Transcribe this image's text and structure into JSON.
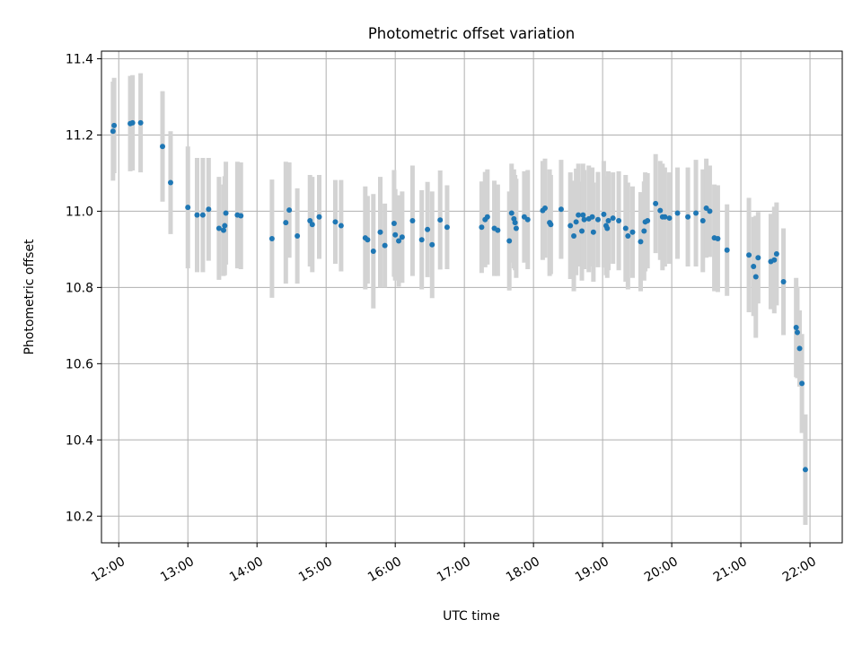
{
  "chart_data": {
    "type": "scatter",
    "title": "Photometric offset variation",
    "xlabel": "UTC time",
    "ylabel": "Photometric offset",
    "x_tick_labels": [
      "12:00",
      "13:00",
      "14:00",
      "15:00",
      "16:00",
      "17:00",
      "18:00",
      "19:00",
      "20:00",
      "21:00",
      "22:00"
    ],
    "y_tick_labels": [
      "10.2",
      "10.4",
      "10.6",
      "10.8",
      "11.0",
      "11.2",
      "11.4"
    ],
    "xlim": [
      "11:45",
      "22:28"
    ],
    "ylim": [
      10.13,
      11.42
    ],
    "grid": true,
    "colors": {
      "marker": "#1f77b4",
      "errorbar": "#d3d3d3"
    },
    "series": [
      {
        "points": [
          [
            "11:55",
            11.21,
            0.13
          ],
          [
            "11:56",
            11.225,
            0.125
          ],
          [
            "12:10",
            11.23,
            0.125
          ],
          [
            "12:12",
            11.232,
            0.125
          ],
          [
            "12:19",
            11.232,
            0.13
          ],
          [
            "12:38",
            11.17,
            0.145
          ],
          [
            "12:45",
            11.075,
            0.135
          ],
          [
            "13:00",
            11.01,
            0.16
          ],
          [
            "13:08",
            10.99,
            0.15
          ],
          [
            "13:13",
            10.99,
            0.15
          ],
          [
            "13:18",
            11.005,
            0.135
          ],
          [
            "13:27",
            10.955,
            0.135
          ],
          [
            "13:31",
            10.95,
            0.12
          ],
          [
            "13:32",
            10.962,
            0.13
          ],
          [
            "13:33",
            10.995,
            0.135
          ],
          [
            "13:43",
            10.99,
            0.14
          ],
          [
            "13:46",
            10.988,
            0.14
          ],
          [
            "14:13",
            10.928,
            0.155
          ],
          [
            "14:25",
            10.97,
            0.16
          ],
          [
            "14:28",
            11.003,
            0.125
          ],
          [
            "14:35",
            10.935,
            0.125
          ],
          [
            "14:46",
            10.975,
            0.12
          ],
          [
            "14:48",
            10.965,
            0.125
          ],
          [
            "14:54",
            10.985,
            0.11
          ],
          [
            "15:08",
            10.972,
            0.11
          ],
          [
            "15:13",
            10.962,
            0.12
          ],
          [
            "15:34",
            10.93,
            0.135
          ],
          [
            "15:36",
            10.925,
            0.115
          ],
          [
            "15:41",
            10.895,
            0.15
          ],
          [
            "15:47",
            10.945,
            0.145
          ],
          [
            "15:51",
            10.91,
            0.11
          ],
          [
            "15:59",
            10.968,
            0.14
          ],
          [
            "16:00",
            10.938,
            0.12
          ],
          [
            "16:03",
            10.922,
            0.12
          ],
          [
            "16:06",
            10.932,
            0.12
          ],
          [
            "16:15",
            10.975,
            0.145
          ],
          [
            "16:23",
            10.925,
            0.13
          ],
          [
            "16:28",
            10.952,
            0.125
          ],
          [
            "16:32",
            10.912,
            0.14
          ],
          [
            "16:39",
            10.977,
            0.13
          ],
          [
            "16:45",
            10.958,
            0.11
          ],
          [
            "17:15",
            10.958,
            0.12
          ],
          [
            "17:18",
            10.978,
            0.125
          ],
          [
            "17:20",
            10.985,
            0.125
          ],
          [
            "17:26",
            10.955,
            0.125
          ],
          [
            "17:29",
            10.95,
            0.12
          ],
          [
            "17:39",
            10.922,
            0.13
          ],
          [
            "17:41",
            10.995,
            0.13
          ],
          [
            "17:43",
            10.98,
            0.13
          ],
          [
            "17:44",
            10.97,
            0.125
          ],
          [
            "17:45",
            10.955,
            0.13
          ],
          [
            "17:52",
            10.985,
            0.12
          ],
          [
            "17:55",
            10.978,
            0.13
          ],
          [
            "18:08",
            11.002,
            0.13
          ],
          [
            "18:10",
            11.008,
            0.13
          ],
          [
            "18:14",
            10.97,
            0.14
          ],
          [
            "18:15",
            10.965,
            0.13
          ],
          [
            "18:24",
            11.005,
            0.13
          ],
          [
            "18:32",
            10.962,
            0.14
          ],
          [
            "18:35",
            10.935,
            0.145
          ],
          [
            "18:37",
            10.972,
            0.14
          ],
          [
            "18:39",
            10.99,
            0.135
          ],
          [
            "18:42",
            10.948,
            0.13
          ],
          [
            "18:43",
            10.99,
            0.135
          ],
          [
            "18:44",
            10.978,
            0.13
          ],
          [
            "18:48",
            10.98,
            0.14
          ],
          [
            "18:51",
            10.985,
            0.13
          ],
          [
            "18:52",
            10.945,
            0.13
          ],
          [
            "18:56",
            10.978,
            0.125
          ],
          [
            "19:01",
            10.992,
            0.14
          ],
          [
            "19:03",
            10.962,
            0.13
          ],
          [
            "19:04",
            10.955,
            0.13
          ],
          [
            "19:05",
            10.975,
            0.13
          ],
          [
            "19:09",
            10.982,
            0.12
          ],
          [
            "19:14",
            10.975,
            0.13
          ],
          [
            "19:20",
            10.955,
            0.14
          ],
          [
            "19:22",
            10.935,
            0.14
          ],
          [
            "19:26",
            10.945,
            0.12
          ],
          [
            "19:33",
            10.92,
            0.13
          ],
          [
            "19:36",
            10.948,
            0.13
          ],
          [
            "19:37",
            10.972,
            0.13
          ],
          [
            "19:39",
            10.975,
            0.125
          ],
          [
            "19:46",
            11.02,
            0.13
          ],
          [
            "19:50",
            11.002,
            0.13
          ],
          [
            "19:52",
            10.985,
            0.14
          ],
          [
            "19:54",
            10.985,
            0.13
          ],
          [
            "19:58",
            10.982,
            0.12
          ],
          [
            "20:05",
            10.995,
            0.12
          ],
          [
            "20:14",
            10.985,
            0.13
          ],
          [
            "20:21",
            10.995,
            0.14
          ],
          [
            "20:27",
            10.975,
            0.135
          ],
          [
            "20:30",
            11.008,
            0.13
          ],
          [
            "20:33",
            11.0,
            0.12
          ],
          [
            "20:37",
            10.93,
            0.14
          ],
          [
            "20:40",
            10.928,
            0.14
          ],
          [
            "20:48",
            10.898,
            0.12
          ],
          [
            "21:07",
            10.885,
            0.15
          ],
          [
            "21:11",
            10.855,
            0.13
          ],
          [
            "21:13",
            10.828,
            0.16
          ],
          [
            "21:15",
            10.878,
            0.12
          ],
          [
            "21:26",
            10.868,
            0.125
          ],
          [
            "21:29",
            10.872,
            0.14
          ],
          [
            "21:31",
            10.888,
            0.135
          ],
          [
            "21:37",
            10.815,
            0.14
          ],
          [
            "21:48",
            10.695,
            0.13
          ],
          [
            "21:49",
            10.682,
            0.12
          ],
          [
            "21:51",
            10.64,
            0.1
          ],
          [
            "21:53",
            10.548,
            0.13
          ],
          [
            "21:56",
            10.322,
            0.145
          ]
        ]
      }
    ]
  }
}
